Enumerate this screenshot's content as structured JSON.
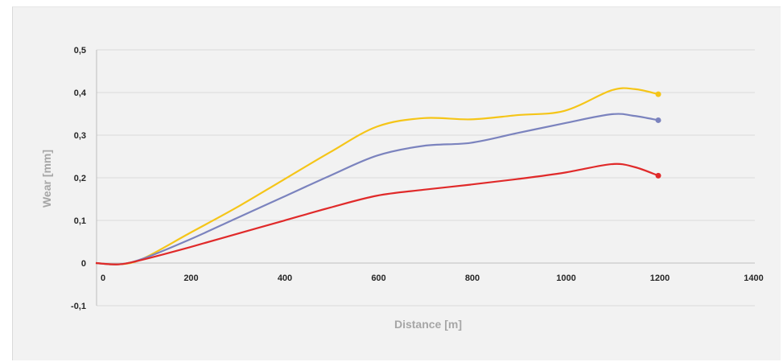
{
  "chart_data": {
    "type": "line",
    "title": "",
    "xlabel": "Distance [m]",
    "ylabel": "Wear [mm]",
    "xlim": [
      0,
      1400
    ],
    "ylim": [
      -0.1,
      0.5
    ],
    "x_ticks": [
      "0",
      "200",
      "400",
      "600",
      "800",
      "1000",
      "1200",
      "1400"
    ],
    "y_ticks": [
      "0,5",
      "0,4",
      "0,3",
      "0,2",
      "0,1",
      "0",
      "-0,1"
    ],
    "grid": "horizontal",
    "legend": "none",
    "colors": {
      "gridline": "#d9d9d9",
      "axis_title": "#a6a6a6"
    },
    "series": [
      {
        "color": "#f5c518",
        "x": [
          0,
          50,
          100,
          200,
          300,
          400,
          500,
          600,
          700,
          800,
          900,
          1000,
          1100,
          1150,
          1200
        ],
        "y": [
          0,
          -0.003,
          0.01,
          0.07,
          0.13,
          0.195,
          0.26,
          0.32,
          0.34,
          0.337,
          0.347,
          0.357,
          0.405,
          0.408,
          0.396
        ]
      },
      {
        "color": "#7b83be",
        "x": [
          0,
          50,
          100,
          200,
          300,
          400,
          500,
          600,
          700,
          800,
          900,
          1000,
          1100,
          1150,
          1200
        ],
        "y": [
          0,
          -0.003,
          0.01,
          0.055,
          0.105,
          0.155,
          0.205,
          0.252,
          0.275,
          0.282,
          0.305,
          0.328,
          0.349,
          0.345,
          0.335
        ]
      },
      {
        "color": "#e02a2a",
        "x": [
          0,
          50,
          100,
          200,
          300,
          400,
          500,
          600,
          700,
          800,
          900,
          1000,
          1100,
          1150,
          1200
        ],
        "y": [
          0,
          -0.003,
          0.008,
          0.037,
          0.068,
          0.099,
          0.13,
          0.158,
          0.172,
          0.184,
          0.197,
          0.212,
          0.232,
          0.225,
          0.205
        ]
      }
    ]
  }
}
